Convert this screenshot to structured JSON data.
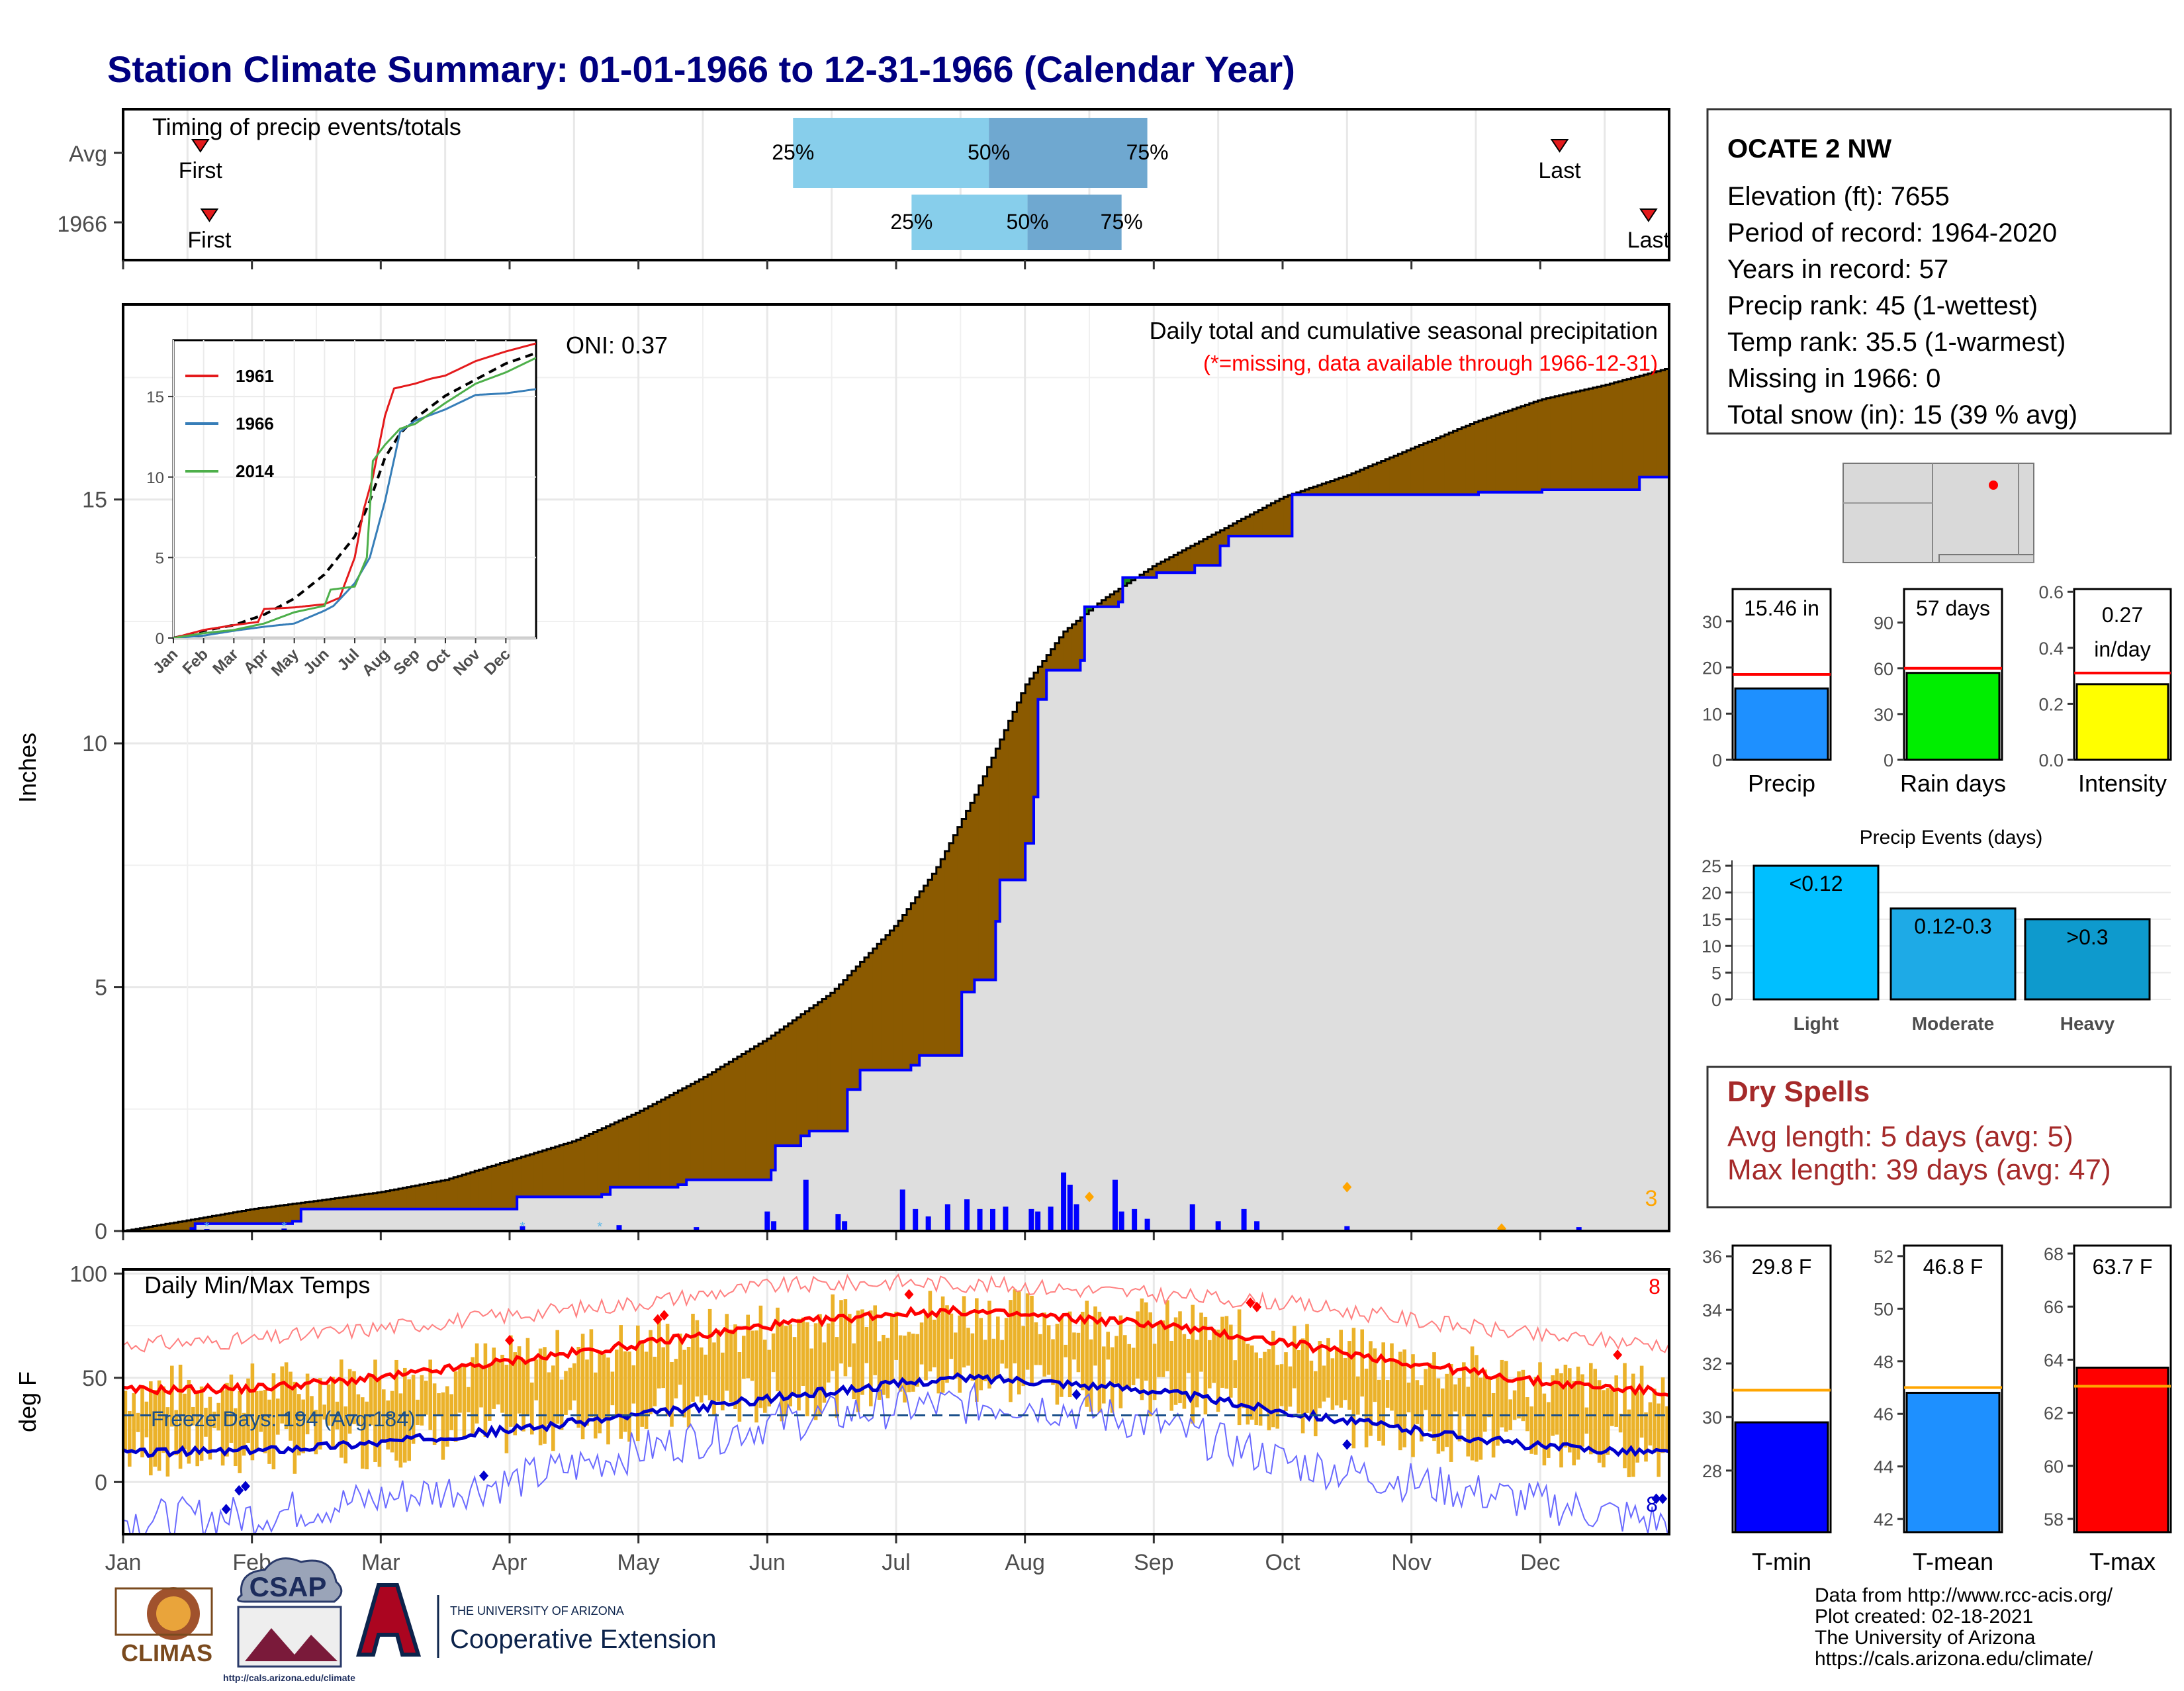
{
  "page": {
    "title": "Station Climate Summary: 01-01-1966 to 12-31-1966 (Calendar Year)",
    "credits": [
      "Data from http://www.rcc-acis.org/",
      "Plot created: 02-18-2021",
      "The University of Arizona",
      "https://cals.arizona.edu/climate/"
    ],
    "logos": {
      "climas": "CLIMAS",
      "csap": "CSAP",
      "csap_url": "http://cals.arizona.edu/climate",
      "ua_small": "THE UNIVERSITY OF ARIZONA",
      "ua_big": "Cooperative Extension"
    }
  },
  "timing_panel": {
    "title": "Timing of precip events/totals",
    "rows": [
      {
        "label": "Avg",
        "first_label": "First",
        "last_label": "Last",
        "first_month": 1.6,
        "last_month": 12.15,
        "q25": 6.2,
        "q50": 7.72,
        "q75": 8.95
      },
      {
        "label": "1966",
        "first_label": "First",
        "last_label": "Last",
        "first_month": 1.67,
        "last_month": 12.84,
        "q25": 7.12,
        "q50": 8.02,
        "q75": 8.75
      }
    ],
    "pct_labels": [
      "25%",
      "50%",
      "75%"
    ]
  },
  "precip_panel": {
    "title": "Daily total and cumulative seasonal precipitation",
    "subtitle": "(*=missing, data available through 1966-12-31)",
    "oni_label": "ONI: 0.37",
    "ylabel": "Inches",
    "ylim": [
      0,
      19
    ],
    "yticks": [
      0,
      5,
      10,
      15
    ],
    "count_label": "3",
    "months": [
      "Jan",
      "Feb",
      "Mar",
      "Apr",
      "May",
      "Jun",
      "Jul",
      "Aug",
      "Sep",
      "Oct",
      "Nov",
      "Dec"
    ]
  },
  "chart_data": [
    {
      "type": "line",
      "title": "Daily total and cumulative seasonal precipitation",
      "ylabel": "Inches",
      "x_unit": "month",
      "xlim": [
        1,
        13
      ],
      "ylim": [
        0,
        19
      ],
      "series": [
        {
          "name": "Average cumulative",
          "color": "#000000",
          "x": [
            1,
            1.5,
            2,
            2.5,
            3,
            3.5,
            4,
            4.5,
            5,
            5.5,
            6,
            6.5,
            7,
            7.3,
            7.6,
            8,
            8.3,
            8.6,
            9,
            9.5,
            10,
            10.5,
            11,
            11.5,
            12,
            12.5,
            13
          ],
          "y": [
            0,
            0.22,
            0.45,
            0.62,
            0.8,
            1.05,
            1.45,
            1.85,
            2.45,
            3.15,
            3.95,
            4.9,
            6.3,
            7.4,
            8.9,
            11.2,
            12.3,
            12.95,
            13.65,
            14.35,
            15.05,
            15.5,
            16.05,
            16.6,
            17.05,
            17.35,
            17.7
          ]
        },
        {
          "name": "1966 cumulative",
          "color": "#0000ff",
          "x": [
            1,
            1.5,
            1.55,
            2.0,
            2.3,
            2.35,
            3.2,
            4.0,
            4.05,
            4.7,
            4.75,
            5.3,
            5.35,
            6.0,
            6.05,
            6.25,
            6.3,
            6.6,
            6.7,
            7.1,
            7.15,
            7.5,
            7.6,
            7.75,
            7.8,
            8.0,
            8.05,
            8.1,
            8.15,
            8.4,
            8.45,
            8.7,
            8.75,
            9.0,
            9.3,
            9.5,
            9.55,
            10.0,
            10.05,
            10.5,
            11.0,
            11.5,
            12.0,
            12.7,
            12.75,
            13.0
          ],
          "y": [
            0,
            0.05,
            0.15,
            0.15,
            0.2,
            0.45,
            0.45,
            0.45,
            0.7,
            0.75,
            0.9,
            0.95,
            1.05,
            1.25,
            1.75,
            1.95,
            2.05,
            2.9,
            3.3,
            3.4,
            3.6,
            4.9,
            5.15,
            6.35,
            7.2,
            7.95,
            8.9,
            10.9,
            11.5,
            11.7,
            12.8,
            12.9,
            13.4,
            13.5,
            13.65,
            14.05,
            14.25,
            14.25,
            15.1,
            15.1,
            15.1,
            15.15,
            15.2,
            15.2,
            15.46,
            15.46
          ]
        }
      ],
      "daily_bars": {
        "color": "#0000ff",
        "x": [
          1.65,
          2.25,
          4.1,
          4.85,
          5.45,
          6.0,
          6.05,
          6.3,
          6.55,
          6.6,
          7.05,
          7.15,
          7.25,
          7.4,
          7.55,
          7.65,
          7.75,
          7.85,
          8.05,
          8.1,
          8.2,
          8.3,
          8.35,
          8.4,
          8.7,
          8.75,
          8.85,
          8.95,
          9.3,
          9.5,
          9.7,
          9.8,
          10.5,
          12.3
        ],
        "y": [
          0.04,
          0.05,
          0.1,
          0.12,
          0.08,
          0.4,
          0.2,
          1.05,
          0.35,
          0.2,
          0.85,
          0.45,
          0.3,
          0.55,
          0.65,
          0.45,
          0.45,
          0.5,
          0.45,
          0.4,
          0.5,
          1.2,
          0.95,
          0.55,
          1.05,
          0.4,
          0.45,
          0.25,
          0.55,
          0.2,
          0.45,
          0.2,
          0.1,
          0.08
        ]
      }
    },
    {
      "type": "line",
      "title": "Daily Min/Max Temps",
      "ylabel": "deg F",
      "x_unit": "month",
      "xlim": [
        1,
        13
      ],
      "ylim": [
        -25,
        102
      ],
      "yticks": [
        0,
        50,
        100
      ],
      "series": [
        {
          "name": "Avg max",
          "color": "#ff0000",
          "x": [
            1,
            2,
            3,
            4,
            5,
            6,
            7,
            7.5,
            8,
            9,
            10,
            11,
            12,
            13
          ],
          "y": [
            44,
            45,
            50,
            58,
            66,
            75,
            81,
            82,
            80,
            76,
            67,
            57,
            48,
            43
          ]
        },
        {
          "name": "Avg min",
          "color": "#0000cc",
          "x": [
            1,
            2,
            3,
            4,
            5,
            6,
            7,
            7.5,
            8,
            9,
            10,
            11,
            12,
            13
          ],
          "y": [
            14,
            15,
            19,
            25,
            32,
            40,
            47,
            50,
            49,
            44,
            34,
            25,
            17,
            14
          ]
        },
        {
          "name": "Record max",
          "color": "#ff8080",
          "x": [
            1,
            2,
            3,
            4,
            5,
            6,
            7,
            8,
            9,
            10,
            11,
            12,
            13
          ],
          "y": [
            66,
            68,
            74,
            80,
            86,
            94,
            96,
            94,
            90,
            86,
            78,
            70,
            66
          ]
        },
        {
          "name": "Record min",
          "color": "#6a6aff",
          "x": [
            1,
            2,
            3,
            4,
            5,
            6,
            7,
            8,
            9,
            10,
            11,
            12,
            13
          ],
          "y": [
            -18,
            -16,
            -8,
            0,
            15,
            28,
            36,
            38,
            28,
            10,
            0,
            -10,
            -20
          ]
        }
      ],
      "freeze_line": 32,
      "freeze_label": "Freeze Days: 194 (Avg:184)",
      "panel_title": "Daily Min/Max Temps",
      "count_top": "8",
      "count_bottom": "8",
      "months": [
        "Jan",
        "Feb",
        "Mar",
        "Apr",
        "May",
        "Jun",
        "Jul",
        "Aug",
        "Sep",
        "Oct",
        "Nov",
        "Dec"
      ]
    },
    {
      "type": "line",
      "title": "",
      "x_unit": "month",
      "xlim": [
        1,
        13
      ],
      "ylim": [
        0,
        18.5
      ],
      "yticks": [
        0,
        5,
        10,
        15
      ],
      "months": [
        "Jan",
        "Feb",
        "Mar",
        "Apr",
        "May",
        "Jun",
        "Jul",
        "Aug",
        "Sep",
        "Oct",
        "Nov",
        "Dec"
      ],
      "legend": "top-left",
      "series": [
        {
          "name": "Average",
          "color": "#000000",
          "dashed": true,
          "x": [
            1,
            2,
            3,
            4,
            5,
            6,
            7,
            7.5,
            8,
            8.5,
            9,
            10,
            11,
            12,
            13
          ],
          "y": [
            0,
            0.45,
            0.8,
            1.45,
            2.45,
            3.95,
            6.3,
            8.5,
            11.2,
            12.7,
            13.65,
            15.05,
            16.05,
            17.05,
            17.7
          ]
        },
        {
          "name": "1961",
          "color": "#e41a1c",
          "x": [
            1,
            2,
            3,
            3.8,
            4,
            5,
            6,
            6.5,
            7,
            7.3,
            7.6,
            8,
            8.3,
            9,
            9.5,
            10,
            11,
            12,
            13
          ],
          "y": [
            0,
            0.5,
            0.8,
            1.0,
            1.8,
            1.9,
            2.1,
            2.5,
            5.0,
            8.0,
            10.0,
            13.8,
            15.5,
            15.8,
            16.1,
            16.3,
            17.2,
            17.8,
            18.3
          ]
        },
        {
          "name": "1966",
          "color": "#377eb8",
          "x": [
            1,
            2,
            3,
            4,
            5,
            6,
            6.3,
            7,
            7.5,
            8,
            8.5,
            9,
            10,
            11,
            12,
            13
          ],
          "y": [
            0,
            0.15,
            0.45,
            0.7,
            0.9,
            1.7,
            2.0,
            3.4,
            5.0,
            8.5,
            12.8,
            13.5,
            14.2,
            15.1,
            15.2,
            15.46
          ]
        },
        {
          "name": "2014",
          "color": "#4daf4a",
          "x": [
            1,
            2,
            3,
            4,
            5,
            6,
            6.2,
            7,
            7.4,
            7.6,
            8,
            8.5,
            9,
            10,
            11,
            12,
            13
          ],
          "y": [
            0,
            0.3,
            0.5,
            0.9,
            1.6,
            2.0,
            3.0,
            3.2,
            5.0,
            11.0,
            12.0,
            13.0,
            13.3,
            14.6,
            15.8,
            16.5,
            17.4
          ]
        }
      ]
    },
    {
      "type": "bar",
      "title": "Precip summary",
      "panels": [
        {
          "name": "Precip",
          "label": "15.46 in",
          "value": 15.46,
          "avg": 18.5,
          "ymax": 37,
          "yticks": [
            0,
            10,
            20,
            30
          ],
          "color": "#1e90ff"
        },
        {
          "name": "Rain days",
          "label": "57 days",
          "value": 57,
          "avg": 60,
          "ymax": 112,
          "yticks": [
            0,
            30,
            60,
            90
          ],
          "color": "#00ee00"
        },
        {
          "name": "Intensity",
          "label": "0.27 in/day",
          "label_lines": [
            "0.27",
            "in/day"
          ],
          "value": 0.27,
          "avg": 0.31,
          "ymax": 0.61,
          "yticks": [
            "0.0",
            "0.2",
            "0.4",
            "0.6"
          ],
          "color": "#ffff00"
        }
      ]
    },
    {
      "type": "bar",
      "title": "Precip Events (days)",
      "categories": [
        "Light",
        "Moderate",
        "Heavy"
      ],
      "bar_labels": [
        "<0.12",
        "0.12-0.3",
        ">0.3"
      ],
      "values": [
        25,
        17,
        15
      ],
      "ylim": [
        0,
        26
      ],
      "yticks": [
        0,
        5,
        10,
        15,
        20,
        25
      ],
      "colors": [
        "#00bfff",
        "#1eaae6",
        "#0e9acd"
      ]
    },
    {
      "type": "bar",
      "title": "Temperature summary",
      "panels": [
        {
          "name": "T-min",
          "label": "29.8 F",
          "value": 29.8,
          "avg": 31.0,
          "ylim": [
            25.7,
            36.4
          ],
          "yticks": [
            28,
            30,
            32,
            34,
            36
          ],
          "color": "#0000ff"
        },
        {
          "name": "T-mean",
          "label": "46.8 F",
          "value": 46.8,
          "avg": 47.0,
          "ylim": [
            41.5,
            52.4
          ],
          "yticks": [
            42,
            44,
            46,
            48,
            50,
            52
          ],
          "color": "#1e90ff"
        },
        {
          "name": "T-max",
          "label": "63.7 F",
          "value": 63.7,
          "avg": 63.0,
          "ylim": [
            57.5,
            68.3
          ],
          "yticks": [
            58,
            60,
            62,
            64,
            66,
            68
          ],
          "color": "#ff0000"
        }
      ]
    }
  ],
  "station": {
    "name": "OCATE 2 NW",
    "lines": [
      "Elevation (ft): 7655",
      "Period of record: 1964-2020",
      "Years in record: 57",
      "Precip rank: 45 (1-wettest)",
      "Temp rank: 35.5 (1-warmest)",
      "Missing in 1966: 0",
      "Total snow (in): 15 (39 % avg)"
    ]
  },
  "dry_spells": {
    "title": "Dry Spells",
    "avg": "Avg length: 5 days (avg: 5)",
    "max": "Max length: 39 days (avg: 47)"
  }
}
